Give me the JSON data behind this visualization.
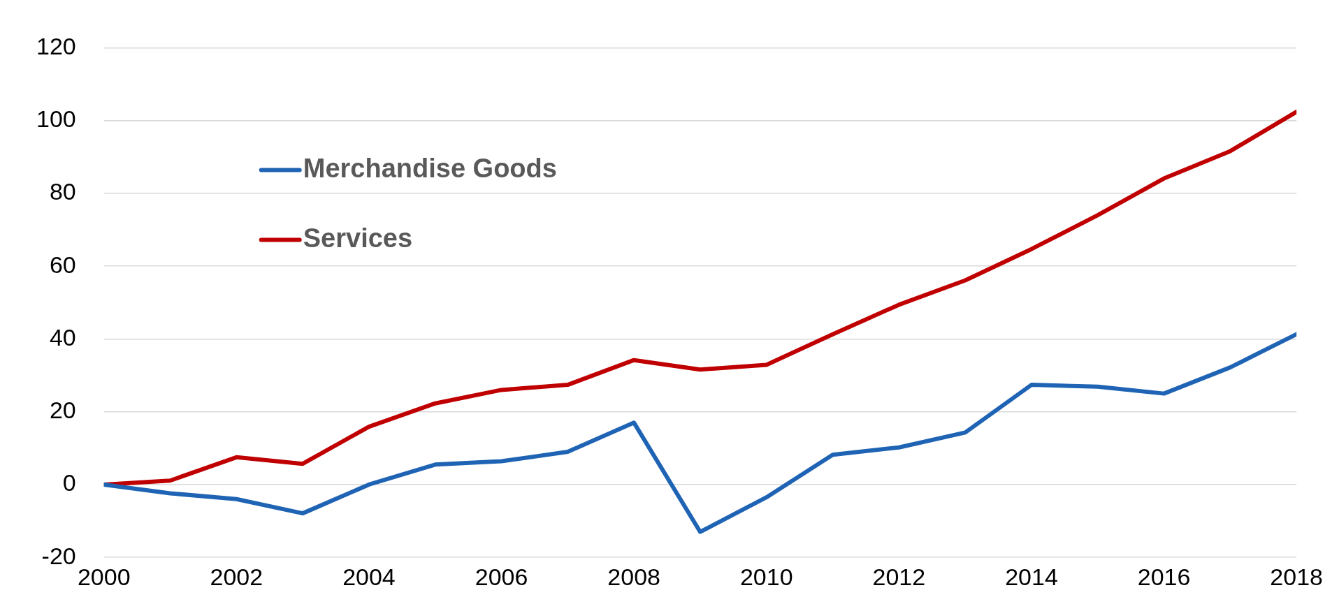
{
  "chart_data": {
    "type": "line",
    "x": [
      2000,
      2001,
      2002,
      2003,
      2004,
      2005,
      2006,
      2007,
      2008,
      2009,
      2010,
      2011,
      2012,
      2013,
      2014,
      2015,
      2016,
      2017,
      2018
    ],
    "series": [
      {
        "name": "Merchandise Goods",
        "color": "#1f64b4",
        "values": [
          0,
          -2.4,
          -4,
          -7.9,
          0,
          5.5,
          6.4,
          9,
          17,
          -13,
          -3.5,
          8.2,
          10.2,
          14.3,
          27.4,
          26.9,
          25,
          32.2,
          41.3
        ]
      },
      {
        "name": "Services",
        "color": "#c00000",
        "values": [
          0,
          1.1,
          7.5,
          5.7,
          15.9,
          22.3,
          26,
          27.4,
          34.2,
          31.6,
          32.9,
          41.3,
          49.4,
          56.1,
          64.7,
          74,
          84.1,
          91.6,
          102.4
        ]
      }
    ],
    "xlim": [
      2000,
      2018
    ],
    "xticks": [
      2000,
      2002,
      2004,
      2006,
      2008,
      2010,
      2012,
      2014,
      2016,
      2018
    ],
    "ylim": [
      -20,
      120
    ],
    "yticks": [
      -20,
      0,
      20,
      40,
      60,
      80,
      100,
      120
    ],
    "grid": "y",
    "legend": "top left",
    "marker": "none",
    "line_style": "solid"
  }
}
